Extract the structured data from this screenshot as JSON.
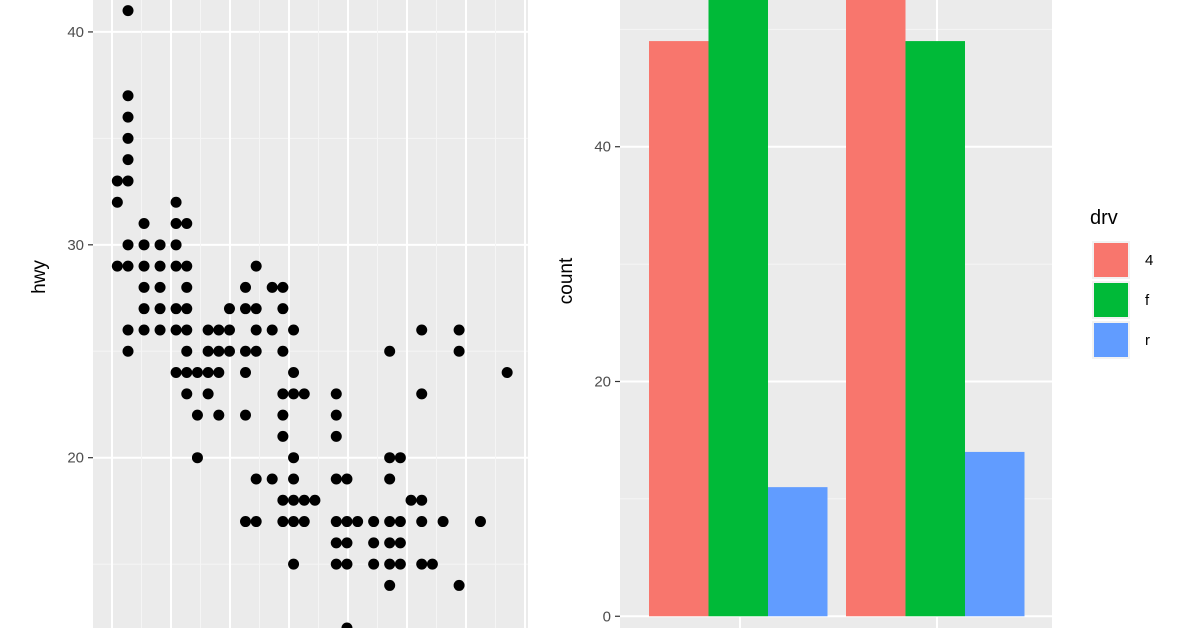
{
  "chart_data": [
    {
      "type": "scatter",
      "title": "",
      "xlabel": "",
      "ylabel": "hwy",
      "ylim": [
        12,
        41.5
      ],
      "yticks": [
        20,
        30,
        40
      ],
      "grid": true,
      "point_color": "#000000",
      "panel_bg": "#ebebeb",
      "points": [
        [
          0.3,
          41
        ],
        [
          0.1,
          33
        ],
        [
          0.1,
          32
        ],
        [
          0.1,
          29
        ],
        [
          0.3,
          37
        ],
        [
          0.3,
          36
        ],
        [
          0.3,
          35
        ],
        [
          0.3,
          34
        ],
        [
          0.3,
          33
        ],
        [
          0.3,
          30
        ],
        [
          0.3,
          29
        ],
        [
          0.3,
          26
        ],
        [
          0.3,
          25
        ],
        [
          0.6,
          31
        ],
        [
          0.6,
          30
        ],
        [
          0.6,
          29
        ],
        [
          0.6,
          28
        ],
        [
          0.6,
          27
        ],
        [
          0.6,
          26
        ],
        [
          0.9,
          30
        ],
        [
          0.9,
          29
        ],
        [
          0.9,
          27
        ],
        [
          0.9,
          26
        ],
        [
          0.9,
          28
        ],
        [
          1.2,
          32
        ],
        [
          1.2,
          31
        ],
        [
          1.2,
          30
        ],
        [
          1.2,
          29
        ],
        [
          1.2,
          27
        ],
        [
          1.2,
          26
        ],
        [
          1.2,
          24
        ],
        [
          1.4,
          31
        ],
        [
          1.4,
          29
        ],
        [
          1.4,
          28
        ],
        [
          1.4,
          27
        ],
        [
          1.4,
          26
        ],
        [
          1.4,
          25
        ],
        [
          1.4,
          24
        ],
        [
          1.4,
          23
        ],
        [
          1.6,
          24
        ],
        [
          1.6,
          22
        ],
        [
          1.6,
          20
        ],
        [
          1.8,
          26
        ],
        [
          1.8,
          25
        ],
        [
          1.8,
          24
        ],
        [
          1.8,
          23
        ],
        [
          2.0,
          26
        ],
        [
          2.0,
          25
        ],
        [
          2.0,
          24
        ],
        [
          2.0,
          22
        ],
        [
          2.2,
          27
        ],
        [
          2.2,
          26
        ],
        [
          2.2,
          25
        ],
        [
          2.5,
          28
        ],
        [
          2.5,
          27
        ],
        [
          2.5,
          25
        ],
        [
          2.5,
          24
        ],
        [
          2.5,
          22
        ],
        [
          2.5,
          17
        ],
        [
          2.7,
          29
        ],
        [
          2.7,
          27
        ],
        [
          2.7,
          26
        ],
        [
          2.7,
          25
        ],
        [
          2.7,
          19
        ],
        [
          2.7,
          17
        ],
        [
          3.0,
          28
        ],
        [
          3.0,
          26
        ],
        [
          3.0,
          19
        ],
        [
          3.2,
          28
        ],
        [
          3.2,
          27
        ],
        [
          3.2,
          25
        ],
        [
          3.2,
          23
        ],
        [
          3.2,
          22
        ],
        [
          3.2,
          21
        ],
        [
          3.2,
          18
        ],
        [
          3.2,
          17
        ],
        [
          3.4,
          26
        ],
        [
          3.4,
          24
        ],
        [
          3.4,
          23
        ],
        [
          3.4,
          20
        ],
        [
          3.4,
          19
        ],
        [
          3.4,
          18
        ],
        [
          3.4,
          17
        ],
        [
          3.4,
          15
        ],
        [
          3.6,
          23
        ],
        [
          3.6,
          18
        ],
        [
          3.6,
          17
        ],
        [
          3.8,
          18
        ],
        [
          4.2,
          23
        ],
        [
          4.2,
          22
        ],
        [
          4.2,
          21
        ],
        [
          4.2,
          19
        ],
        [
          4.2,
          17
        ],
        [
          4.2,
          16
        ],
        [
          4.2,
          15
        ],
        [
          4.4,
          19
        ],
        [
          4.4,
          17
        ],
        [
          4.4,
          16
        ],
        [
          4.4,
          15
        ],
        [
          4.4,
          12
        ],
        [
          4.6,
          17
        ],
        [
          4.9,
          17
        ],
        [
          4.9,
          16
        ],
        [
          4.9,
          15
        ],
        [
          5.2,
          25
        ],
        [
          5.2,
          20
        ],
        [
          5.2,
          19
        ],
        [
          5.2,
          17
        ],
        [
          5.2,
          16
        ],
        [
          5.2,
          15
        ],
        [
          5.2,
          14
        ],
        [
          5.4,
          20
        ],
        [
          5.4,
          17
        ],
        [
          5.4,
          16
        ],
        [
          5.4,
          15
        ],
        [
          5.6,
          18
        ],
        [
          5.8,
          26
        ],
        [
          5.8,
          23
        ],
        [
          5.8,
          18
        ],
        [
          5.8,
          17
        ],
        [
          5.8,
          15
        ],
        [
          6.0,
          15
        ],
        [
          6.2,
          17
        ],
        [
          6.5,
          26
        ],
        [
          6.5,
          25
        ],
        [
          6.5,
          14
        ],
        [
          6.9,
          17
        ],
        [
          7.4,
          24
        ]
      ]
    },
    {
      "type": "bar",
      "title": "",
      "xlabel": "",
      "ylabel": "count",
      "ylim": [
        0,
        52
      ],
      "yticks": [
        0,
        20,
        40
      ],
      "grid": true,
      "panel_bg": "#ebebeb",
      "groups": 2,
      "legend_placement": "right",
      "legend_title": "drv",
      "series": [
        {
          "name": "4",
          "color": "#F8766D",
          "values": [
            49,
            54
          ]
        },
        {
          "name": "f",
          "color": "#00BA38",
          "values": [
            54,
            49
          ]
        },
        {
          "name": "r",
          "color": "#619CFF",
          "values": [
            11,
            14
          ]
        }
      ]
    }
  ]
}
